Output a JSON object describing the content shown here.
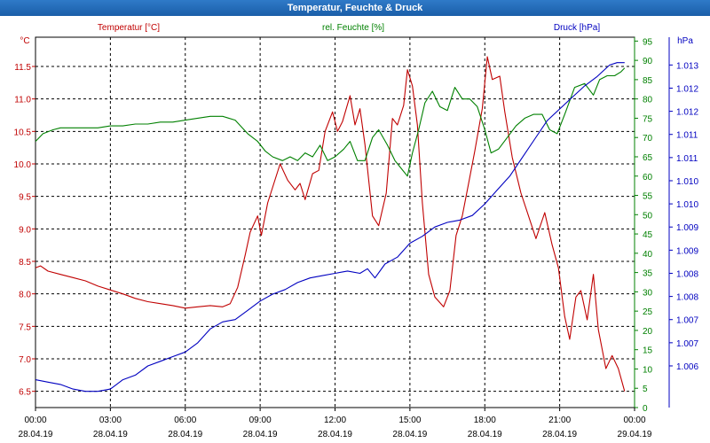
{
  "window": {
    "title": "Temperatur, Feuchte & Druck"
  },
  "chart_data": {
    "type": "line",
    "title": "Temperatur, Feuchte & Druck",
    "grid": true,
    "x_ticks": [
      {
        "h": 0,
        "time": "00:00",
        "date": "28.04.19"
      },
      {
        "h": 3,
        "time": "03:00",
        "date": "28.04.19"
      },
      {
        "h": 6,
        "time": "06:00",
        "date": "28.04.19"
      },
      {
        "h": 9,
        "time": "09:00",
        "date": "28.04.19"
      },
      {
        "h": 12,
        "time": "12:00",
        "date": "28.04.19"
      },
      {
        "h": 15,
        "time": "15:00",
        "date": "28.04.19"
      },
      {
        "h": 18,
        "time": "18:00",
        "date": "28.04.19"
      },
      {
        "h": 21,
        "time": "21:00",
        "date": "28.04.19"
      },
      {
        "h": 24,
        "time": "00:00",
        "date": "29.04.19"
      }
    ],
    "x_range_hours": [
      0,
      24
    ],
    "axes": {
      "temperature": {
        "label": "Temperatur [°C]",
        "unit": "°C",
        "color": "#c00000",
        "ylim": [
          6.25,
          11.95
        ],
        "ticks": [
          "11.5",
          "11.0",
          "10.5",
          "10.0",
          "9.5",
          "9.0",
          "8.5",
          "8.0",
          "7.5",
          "7.0",
          "6.5"
        ],
        "tick_values": [
          11.5,
          11.0,
          10.5,
          10.0,
          9.5,
          9.0,
          8.5,
          8.0,
          7.5,
          7.0,
          6.5
        ]
      },
      "humidity": {
        "label": "rel. Feuchte [%]",
        "unit": "%",
        "color": "#008000",
        "ylim": [
          0,
          96
        ],
        "ticks": [
          "95",
          "90",
          "85",
          "80",
          "75",
          "70",
          "65",
          "60",
          "55",
          "50",
          "45",
          "40",
          "35",
          "30",
          "25",
          "20",
          "15",
          "10",
          "5",
          "0"
        ],
        "tick_values": [
          95,
          90,
          85,
          80,
          75,
          70,
          65,
          60,
          55,
          50,
          45,
          40,
          35,
          30,
          25,
          20,
          15,
          10,
          5,
          0
        ],
        "top_label": "%"
      },
      "pressure": {
        "label": "Druck [hPa]",
        "unit": "hPa",
        "color": "#0000c0",
        "ylim": [
          1005.6,
          1013.6
        ],
        "ticks": [
          "1.013",
          "1.012",
          "1.012",
          "1.011",
          "1.011",
          "1.010",
          "1.010",
          "1.009",
          "1.009",
          "1.008",
          "1.008",
          "1.007",
          "1.007",
          "1.006"
        ],
        "tick_values": [
          1013.0,
          1012.5,
          1012.0,
          1011.5,
          1011.0,
          1010.5,
          1010.0,
          1009.5,
          1009.0,
          1008.5,
          1008.0,
          1007.5,
          1007.0,
          1006.5
        ]
      }
    },
    "series": [
      {
        "name": "Temperatur [°C]",
        "axis": "temperature",
        "color": "#c00000",
        "points": [
          [
            0,
            8.4
          ],
          [
            0.2,
            8.43
          ],
          [
            0.5,
            8.35
          ],
          [
            1,
            8.3
          ],
          [
            1.5,
            8.25
          ],
          [
            2,
            8.2
          ],
          [
            2.5,
            8.12
          ],
          [
            3,
            8.06
          ],
          [
            3.5,
            8.0
          ],
          [
            4,
            7.93
          ],
          [
            4.5,
            7.88
          ],
          [
            5,
            7.85
          ],
          [
            5.5,
            7.82
          ],
          [
            6,
            7.78
          ],
          [
            6.5,
            7.8
          ],
          [
            7,
            7.82
          ],
          [
            7.5,
            7.8
          ],
          [
            7.8,
            7.85
          ],
          [
            8.1,
            8.1
          ],
          [
            8.4,
            8.6
          ],
          [
            8.6,
            8.95
          ],
          [
            8.9,
            9.2
          ],
          [
            9.05,
            8.9
          ],
          [
            9.3,
            9.4
          ],
          [
            9.55,
            9.7
          ],
          [
            9.8,
            10.0
          ],
          [
            10.1,
            9.75
          ],
          [
            10.4,
            9.6
          ],
          [
            10.6,
            9.7
          ],
          [
            10.8,
            9.45
          ],
          [
            11.1,
            9.85
          ],
          [
            11.35,
            9.9
          ],
          [
            11.6,
            10.5
          ],
          [
            11.9,
            10.8
          ],
          [
            12.1,
            10.5
          ],
          [
            12.3,
            10.65
          ],
          [
            12.6,
            11.05
          ],
          [
            12.8,
            10.6
          ],
          [
            13,
            10.85
          ],
          [
            13.2,
            10.3
          ],
          [
            13.5,
            9.2
          ],
          [
            13.75,
            9.05
          ],
          [
            14.05,
            9.55
          ],
          [
            14.3,
            10.7
          ],
          [
            14.5,
            10.6
          ],
          [
            14.75,
            10.9
          ],
          [
            14.9,
            11.45
          ],
          [
            15.1,
            11.2
          ],
          [
            15.3,
            10.6
          ],
          [
            15.5,
            9.4
          ],
          [
            15.75,
            8.3
          ],
          [
            16,
            7.95
          ],
          [
            16.35,
            7.8
          ],
          [
            16.6,
            8.05
          ],
          [
            16.85,
            8.9
          ],
          [
            17.1,
            9.2
          ],
          [
            17.35,
            9.7
          ],
          [
            17.6,
            10.2
          ],
          [
            17.9,
            10.85
          ],
          [
            18.1,
            11.65
          ],
          [
            18.3,
            11.3
          ],
          [
            18.6,
            11.35
          ],
          [
            18.8,
            10.8
          ],
          [
            19.1,
            10.1
          ],
          [
            19.45,
            9.55
          ],
          [
            19.75,
            9.2
          ],
          [
            20.05,
            8.85
          ],
          [
            20.4,
            9.25
          ],
          [
            20.7,
            8.75
          ],
          [
            20.95,
            8.4
          ],
          [
            21.2,
            7.65
          ],
          [
            21.4,
            7.3
          ],
          [
            21.65,
            7.95
          ],
          [
            21.85,
            8.05
          ],
          [
            22.1,
            7.6
          ],
          [
            22.35,
            8.3
          ],
          [
            22.55,
            7.45
          ],
          [
            22.85,
            6.85
          ],
          [
            23.1,
            7.05
          ],
          [
            23.35,
            6.85
          ],
          [
            23.6,
            6.5
          ]
        ]
      },
      {
        "name": "rel. Feuchte [%]",
        "axis": "humidity",
        "color": "#008000",
        "points": [
          [
            0,
            69
          ],
          [
            0.3,
            71
          ],
          [
            0.7,
            72
          ],
          [
            1,
            72.5
          ],
          [
            1.5,
            72.5
          ],
          [
            2,
            72.5
          ],
          [
            2.5,
            72.5
          ],
          [
            3,
            73
          ],
          [
            3.5,
            73
          ],
          [
            4,
            73.5
          ],
          [
            4.5,
            73.5
          ],
          [
            5,
            74
          ],
          [
            5.5,
            74
          ],
          [
            6,
            74.5
          ],
          [
            6.5,
            75
          ],
          [
            7,
            75.5
          ],
          [
            7.5,
            75.5
          ],
          [
            8,
            74.5
          ],
          [
            8.5,
            71
          ],
          [
            8.9,
            69
          ],
          [
            9.2,
            66.5
          ],
          [
            9.5,
            65
          ],
          [
            9.9,
            64
          ],
          [
            10.2,
            65
          ],
          [
            10.5,
            64
          ],
          [
            10.8,
            66
          ],
          [
            11.1,
            65
          ],
          [
            11.4,
            68
          ],
          [
            11.7,
            64
          ],
          [
            12,
            65
          ],
          [
            12.35,
            67
          ],
          [
            12.6,
            69
          ],
          [
            12.9,
            64
          ],
          [
            13.2,
            64
          ],
          [
            13.5,
            70
          ],
          [
            13.75,
            72
          ],
          [
            14.1,
            68
          ],
          [
            14.4,
            64
          ],
          [
            14.65,
            62
          ],
          [
            14.9,
            60
          ],
          [
            15.1,
            66
          ],
          [
            15.35,
            72
          ],
          [
            15.6,
            79
          ],
          [
            15.9,
            82
          ],
          [
            16.2,
            78
          ],
          [
            16.5,
            77
          ],
          [
            16.8,
            83
          ],
          [
            17.1,
            80
          ],
          [
            17.4,
            80
          ],
          [
            17.7,
            78
          ],
          [
            18.0,
            72
          ],
          [
            18.25,
            66
          ],
          [
            18.55,
            67
          ],
          [
            18.9,
            70
          ],
          [
            19.25,
            73
          ],
          [
            19.6,
            75
          ],
          [
            19.95,
            76
          ],
          [
            20.3,
            76
          ],
          [
            20.6,
            72
          ],
          [
            20.9,
            71
          ],
          [
            21.2,
            76
          ],
          [
            21.6,
            83
          ],
          [
            22.0,
            84
          ],
          [
            22.35,
            81
          ],
          [
            22.6,
            85
          ],
          [
            22.9,
            86
          ],
          [
            23.2,
            86
          ],
          [
            23.45,
            87
          ],
          [
            23.6,
            88
          ]
        ]
      },
      {
        "name": "Druck [hPa]",
        "axis": "pressure",
        "color": "#0000c0",
        "points": [
          [
            0,
            1006.2
          ],
          [
            0.5,
            1006.15
          ],
          [
            1,
            1006.1
          ],
          [
            1.5,
            1006.0
          ],
          [
            2,
            1005.95
          ],
          [
            2.5,
            1005.95
          ],
          [
            3,
            1006.0
          ],
          [
            3.5,
            1006.2
          ],
          [
            4,
            1006.3
          ],
          [
            4.5,
            1006.5
          ],
          [
            5,
            1006.6
          ],
          [
            5.5,
            1006.7
          ],
          [
            6,
            1006.8
          ],
          [
            6.5,
            1007.0
          ],
          [
            7,
            1007.3
          ],
          [
            7.5,
            1007.45
          ],
          [
            8,
            1007.5
          ],
          [
            8.5,
            1007.7
          ],
          [
            9,
            1007.9
          ],
          [
            9.5,
            1008.05
          ],
          [
            10,
            1008.15
          ],
          [
            10.5,
            1008.3
          ],
          [
            11,
            1008.4
          ],
          [
            11.5,
            1008.45
          ],
          [
            12,
            1008.5
          ],
          [
            12.5,
            1008.55
          ],
          [
            13,
            1008.5
          ],
          [
            13.3,
            1008.6
          ],
          [
            13.6,
            1008.4
          ],
          [
            14,
            1008.7
          ],
          [
            14.5,
            1008.85
          ],
          [
            15,
            1009.15
          ],
          [
            15.5,
            1009.3
          ],
          [
            16,
            1009.5
          ],
          [
            16.5,
            1009.6
          ],
          [
            17,
            1009.65
          ],
          [
            17.5,
            1009.75
          ],
          [
            18,
            1010.0
          ],
          [
            18.5,
            1010.3
          ],
          [
            19,
            1010.6
          ],
          [
            19.5,
            1011.0
          ],
          [
            20,
            1011.4
          ],
          [
            20.5,
            1011.8
          ],
          [
            21,
            1012.05
          ],
          [
            21.5,
            1012.3
          ],
          [
            22,
            1012.55
          ],
          [
            22.5,
            1012.75
          ],
          [
            23,
            1013.0
          ],
          [
            23.3,
            1013.05
          ],
          [
            23.6,
            1013.05
          ]
        ]
      }
    ]
  }
}
